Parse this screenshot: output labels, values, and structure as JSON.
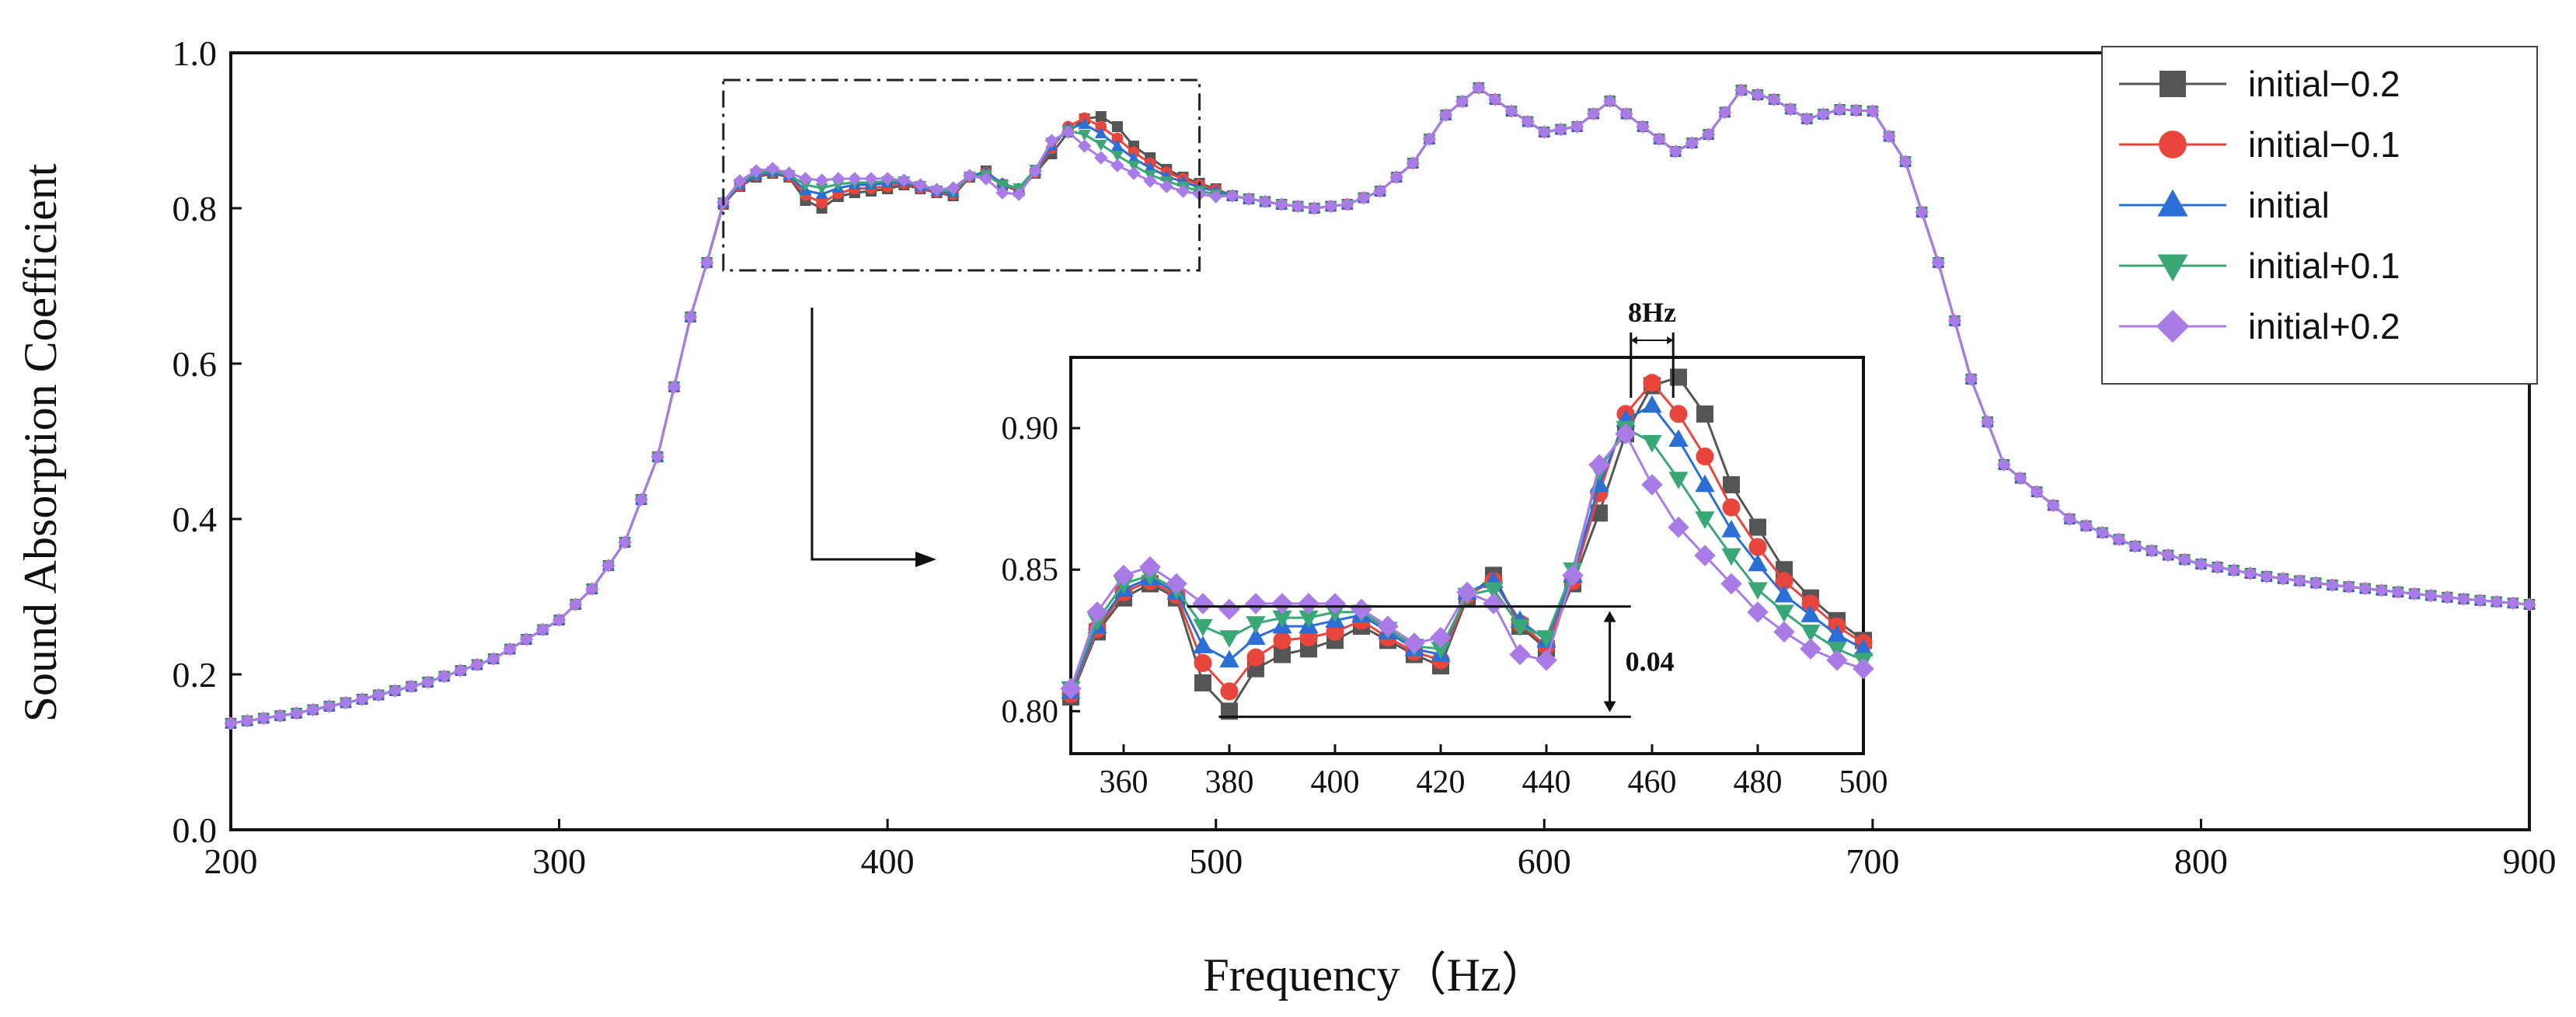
{
  "chart_data": {
    "type": "line",
    "xlabel": "Frequency（Hz）",
    "ylabel": "Sound Absorption Coefficient",
    "xlim": [
      200,
      900
    ],
    "ylim": [
      0.0,
      1.0
    ],
    "x_ticks": [
      "200",
      "300",
      "400",
      "500",
      "600",
      "700",
      "800",
      "900"
    ],
    "y_ticks": [
      "0.0",
      "0.2",
      "0.4",
      "0.6",
      "0.8",
      "1.0"
    ],
    "legend_position": "top-right",
    "zoom_box": {
      "xlim": [
        350,
        495
      ],
      "ylim": [
        0.72,
        0.965
      ]
    },
    "inset": {
      "xlim": [
        350,
        500
      ],
      "ylim": [
        0.785,
        0.925
      ],
      "x_ticks": [
        "360",
        "380",
        "400",
        "420",
        "440",
        "460",
        "480",
        "500"
      ],
      "y_ticks": [
        "0.80",
        "0.85",
        "0.90"
      ],
      "annotations": [
        {
          "label": "8Hz",
          "x_from": 456,
          "x_to": 464
        },
        {
          "label": "0.04",
          "y_from": 0.798,
          "y_to": 0.837
        }
      ]
    },
    "base_curve": {
      "x": [
        200,
        220,
        240,
        260,
        280,
        300,
        310,
        320,
        330,
        340,
        350
      ],
      "y": [
        0.137,
        0.15,
        0.168,
        0.19,
        0.22,
        0.27,
        0.31,
        0.37,
        0.48,
        0.66,
        0.8
      ]
    },
    "tail_curve": {
      "x": [
        500,
        510,
        520,
        530,
        540,
        550,
        560,
        570,
        580,
        590,
        600,
        610,
        620,
        630,
        640,
        650,
        660,
        670,
        680,
        690,
        700,
        710,
        720,
        730,
        740,
        760,
        780,
        800,
        820,
        840,
        860,
        880,
        900
      ],
      "y": [
        0.82,
        0.812,
        0.805,
        0.8,
        0.805,
        0.822,
        0.858,
        0.92,
        0.955,
        0.925,
        0.898,
        0.905,
        0.938,
        0.905,
        0.873,
        0.895,
        0.952,
        0.94,
        0.915,
        0.927,
        0.925,
        0.86,
        0.73,
        0.58,
        0.47,
        0.4,
        0.365,
        0.342,
        0.326,
        0.315,
        0.306,
        0.297,
        0.29
      ]
    },
    "series": [
      {
        "name": "initial−0.2",
        "color": "#555555",
        "marker": "square",
        "x": [
          350,
          355,
          360,
          365,
          370,
          375,
          380,
          385,
          390,
          395,
          400,
          405,
          410,
          415,
          420,
          425,
          430,
          435,
          440,
          445,
          450,
          455,
          460,
          465,
          470,
          475,
          480,
          485,
          490,
          495,
          500
        ],
        "y": [
          0.805,
          0.828,
          0.84,
          0.845,
          0.84,
          0.81,
          0.8,
          0.815,
          0.82,
          0.822,
          0.825,
          0.83,
          0.825,
          0.82,
          0.816,
          0.84,
          0.848,
          0.83,
          0.822,
          0.845,
          0.87,
          0.898,
          0.915,
          0.918,
          0.905,
          0.88,
          0.865,
          0.85,
          0.84,
          0.832,
          0.825
        ]
      },
      {
        "name": "initial−0.1",
        "color": "#e8453c",
        "marker": "circle",
        "x": [
          350,
          355,
          360,
          365,
          370,
          375,
          380,
          385,
          390,
          395,
          400,
          405,
          410,
          415,
          420,
          425,
          430,
          435,
          440,
          445,
          450,
          455,
          460,
          465,
          470,
          475,
          480,
          485,
          490,
          495,
          500
        ],
        "y": [
          0.806,
          0.829,
          0.842,
          0.846,
          0.841,
          0.817,
          0.807,
          0.819,
          0.825,
          0.826,
          0.828,
          0.832,
          0.826,
          0.821,
          0.818,
          0.841,
          0.846,
          0.831,
          0.823,
          0.846,
          0.877,
          0.905,
          0.916,
          0.905,
          0.89,
          0.872,
          0.858,
          0.846,
          0.838,
          0.83,
          0.824
        ]
      },
      {
        "name": "initial",
        "color": "#2b6fd6",
        "marker": "triangle-up",
        "x": [
          350,
          355,
          360,
          365,
          370,
          375,
          380,
          385,
          390,
          395,
          400,
          405,
          410,
          415,
          420,
          425,
          430,
          435,
          440,
          445,
          450,
          455,
          460,
          465,
          470,
          475,
          480,
          485,
          490,
          495,
          500
        ],
        "y": [
          0.807,
          0.83,
          0.843,
          0.847,
          0.842,
          0.823,
          0.818,
          0.826,
          0.83,
          0.83,
          0.832,
          0.834,
          0.828,
          0.822,
          0.82,
          0.842,
          0.846,
          0.832,
          0.825,
          0.848,
          0.88,
          0.903,
          0.908,
          0.896,
          0.88,
          0.864,
          0.852,
          0.841,
          0.834,
          0.827,
          0.822
        ]
      },
      {
        "name": "initial+0.1",
        "color": "#3aa876",
        "marker": "triangle-down",
        "x": [
          350,
          355,
          360,
          365,
          370,
          375,
          380,
          385,
          390,
          395,
          400,
          405,
          410,
          415,
          420,
          425,
          430,
          435,
          440,
          445,
          450,
          455,
          460,
          465,
          470,
          475,
          480,
          485,
          490,
          495,
          500
        ],
        "y": [
          0.808,
          0.832,
          0.845,
          0.848,
          0.843,
          0.83,
          0.826,
          0.831,
          0.833,
          0.833,
          0.835,
          0.835,
          0.829,
          0.823,
          0.822,
          0.841,
          0.843,
          0.83,
          0.826,
          0.85,
          0.885,
          0.9,
          0.895,
          0.882,
          0.868,
          0.855,
          0.843,
          0.835,
          0.828,
          0.822,
          0.818
        ]
      },
      {
        "name": "initial+0.2",
        "color": "#a97be6",
        "marker": "diamond",
        "x": [
          350,
          355,
          360,
          365,
          370,
          375,
          380,
          385,
          390,
          395,
          400,
          405,
          410,
          415,
          420,
          425,
          430,
          435,
          440,
          445,
          450,
          455,
          460,
          465,
          470,
          475,
          480,
          485,
          490,
          495,
          500
        ],
        "y": [
          0.808,
          0.835,
          0.848,
          0.851,
          0.845,
          0.838,
          0.836,
          0.838,
          0.838,
          0.838,
          0.838,
          0.836,
          0.83,
          0.824,
          0.826,
          0.842,
          0.838,
          0.82,
          0.818,
          0.848,
          0.887,
          0.898,
          0.88,
          0.865,
          0.855,
          0.845,
          0.835,
          0.828,
          0.822,
          0.818,
          0.815
        ]
      }
    ]
  }
}
